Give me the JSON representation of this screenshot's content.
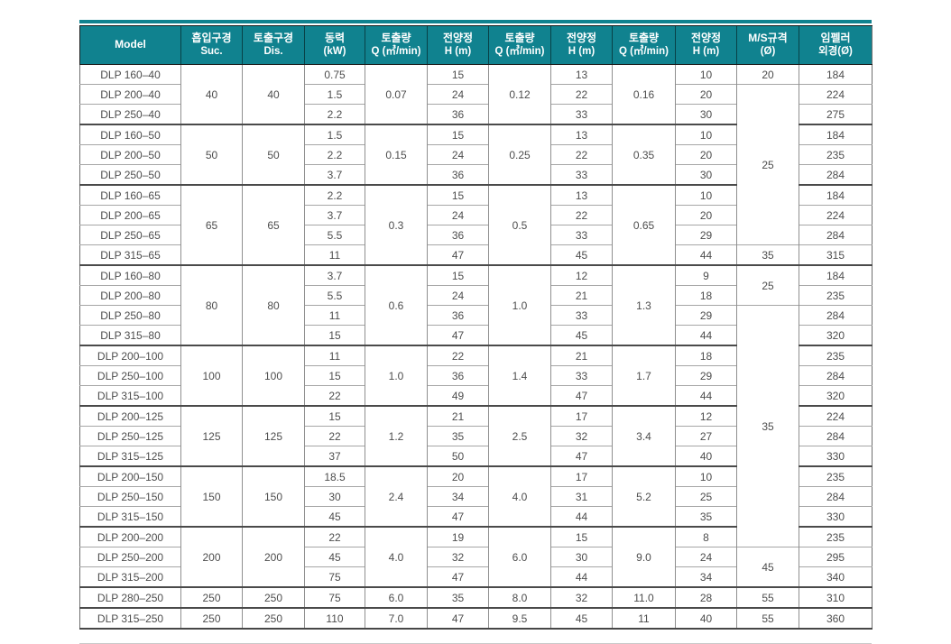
{
  "colors": {
    "header_bg": "#10828F",
    "header_text": "#ffffff",
    "accent_bar": "#10828F",
    "group_border": "#4a4a4a",
    "row_border": "#a6a6a6",
    "data_text": "#4d4d4d"
  },
  "table": {
    "header": {
      "model": "Model",
      "suction": [
        "흡입구경",
        "Suc."
      ],
      "discharge": [
        "토출구경",
        "Dis."
      ],
      "power": [
        "동력",
        "(kW)"
      ],
      "q1": [
        "토출량",
        "Q (㎥/min)"
      ],
      "h1": [
        "전양정",
        "H (m)"
      ],
      "q2": [
        "토출량",
        "Q (㎥/min)"
      ],
      "h2": [
        "전양정",
        "H (m)"
      ],
      "q3": [
        "토출량",
        "Q (㎥/min)"
      ],
      "h3": [
        "전양정",
        "H (m)"
      ],
      "ms": [
        "M/S규격",
        "(Ø)"
      ],
      "impeller": [
        "임펠러",
        "외경(Ø)"
      ]
    },
    "groups": [
      {
        "suc": "40",
        "dis": "40",
        "q": [
          "0.07",
          "0.12",
          "0.16"
        ],
        "rows": [
          {
            "model": "DLP 160–40",
            "kw": "0.75",
            "h": [
              "15",
              "13",
              "10"
            ],
            "imp": "184"
          },
          {
            "model": "DLP 200–40",
            "kw": "1.5",
            "h": [
              "24",
              "22",
              "20"
            ],
            "imp": "224"
          },
          {
            "model": "DLP 250–40",
            "kw": "2.2",
            "h": [
              "36",
              "33",
              "30"
            ],
            "imp": "275"
          }
        ]
      },
      {
        "suc": "50",
        "dis": "50",
        "q": [
          "0.15",
          "0.25",
          "0.35"
        ],
        "rows": [
          {
            "model": "DLP 160–50",
            "kw": "1.5",
            "h": [
              "15",
              "13",
              "10"
            ],
            "imp": "184"
          },
          {
            "model": "DLP 200–50",
            "kw": "2.2",
            "h": [
              "24",
              "22",
              "20"
            ],
            "imp": "235"
          },
          {
            "model": "DLP 250–50",
            "kw": "3.7",
            "h": [
              "36",
              "33",
              "30"
            ],
            "imp": "284"
          }
        ]
      },
      {
        "suc": "65",
        "dis": "65",
        "q": [
          "0.3",
          "0.5",
          "0.65"
        ],
        "rows": [
          {
            "model": "DLP 160–65",
            "kw": "2.2",
            "h": [
              "15",
              "13",
              "10"
            ],
            "imp": "184"
          },
          {
            "model": "DLP 200–65",
            "kw": "3.7",
            "h": [
              "24",
              "22",
              "20"
            ],
            "imp": "224"
          },
          {
            "model": "DLP 250–65",
            "kw": "5.5",
            "h": [
              "36",
              "33",
              "29"
            ],
            "imp": "284"
          },
          {
            "model": "DLP 315–65",
            "kw": "11",
            "h": [
              "47",
              "45",
              "44"
            ],
            "imp": "315"
          }
        ]
      },
      {
        "suc": "80",
        "dis": "80",
        "q": [
          "0.6",
          "1.0",
          "1.3"
        ],
        "rows": [
          {
            "model": "DLP 160–80",
            "kw": "3.7",
            "h": [
              "15",
              "12",
              "9"
            ],
            "imp": "184"
          },
          {
            "model": "DLP 200–80",
            "kw": "5.5",
            "h": [
              "24",
              "21",
              "18"
            ],
            "imp": "235"
          },
          {
            "model": "DLP 250–80",
            "kw": "11",
            "h": [
              "36",
              "33",
              "29"
            ],
            "imp": "284"
          },
          {
            "model": "DLP 315–80",
            "kw": "15",
            "h": [
              "47",
              "45",
              "44"
            ],
            "imp": "320"
          }
        ]
      },
      {
        "suc": "100",
        "dis": "100",
        "q": [
          "1.0",
          "1.4",
          "1.7"
        ],
        "rows": [
          {
            "model": "DLP 200–100",
            "kw": "11",
            "h": [
              "22",
              "21",
              "18"
            ],
            "imp": "235"
          },
          {
            "model": "DLP 250–100",
            "kw": "15",
            "h": [
              "36",
              "33",
              "29"
            ],
            "imp": "284"
          },
          {
            "model": "DLP 315–100",
            "kw": "22",
            "h": [
              "49",
              "47",
              "44"
            ],
            "imp": "320"
          }
        ]
      },
      {
        "suc": "125",
        "dis": "125",
        "q": [
          "1.2",
          "2.5",
          "3.4"
        ],
        "rows": [
          {
            "model": "DLP 200–125",
            "kw": "15",
            "h": [
              "21",
              "17",
              "12"
            ],
            "imp": "224"
          },
          {
            "model": "DLP 250–125",
            "kw": "22",
            "h": [
              "35",
              "32",
              "27"
            ],
            "imp": "284"
          },
          {
            "model": "DLP 315–125",
            "kw": "37",
            "h": [
              "50",
              "47",
              "40"
            ],
            "imp": "330"
          }
        ]
      },
      {
        "suc": "150",
        "dis": "150",
        "q": [
          "2.4",
          "4.0",
          "5.2"
        ],
        "rows": [
          {
            "model": "DLP 200–150",
            "kw": "18.5",
            "h": [
              "20",
              "17",
              "10"
            ],
            "imp": "235"
          },
          {
            "model": "DLP 250–150",
            "kw": "30",
            "h": [
              "34",
              "31",
              "25"
            ],
            "imp": "284"
          },
          {
            "model": "DLP 315–150",
            "kw": "45",
            "h": [
              "47",
              "44",
              "35"
            ],
            "imp": "330"
          }
        ]
      },
      {
        "suc": "200",
        "dis": "200",
        "q": [
          "4.0",
          "6.0",
          "9.0"
        ],
        "rows": [
          {
            "model": "DLP 200–200",
            "kw": "22",
            "h": [
              "19",
              "15",
              "8"
            ],
            "imp": "235"
          },
          {
            "model": "DLP 250–200",
            "kw": "45",
            "h": [
              "32",
              "30",
              "24"
            ],
            "imp": "295"
          },
          {
            "model": "DLP 315–200",
            "kw": "75",
            "h": [
              "47",
              "44",
              "34"
            ],
            "imp": "340"
          }
        ]
      },
      {
        "suc": "250",
        "dis": "250",
        "q": [
          "6.0",
          "8.0",
          "11.0"
        ],
        "rows": [
          {
            "model": "DLP 280–250",
            "kw": "75",
            "h": [
              "35",
              "32",
              "28"
            ],
            "imp": "310"
          }
        ]
      },
      {
        "suc": "250",
        "dis": "250",
        "q": [
          "7.0",
          "9.5",
          "11"
        ],
        "rows": [
          {
            "model": "DLP 315–250",
            "kw": "110",
            "h": [
              "47",
              "45",
              "40"
            ],
            "imp": "360"
          }
        ]
      }
    ],
    "ms_column": [
      {
        "value": "20",
        "span": 1
      },
      {
        "value": "25",
        "span": 8
      },
      {
        "value": "35",
        "span": 1
      },
      {
        "value": "25",
        "span": 2
      },
      {
        "value": "35",
        "span": 12
      },
      {
        "value": "45",
        "span": 2
      },
      {
        "value": "55",
        "span": 1
      },
      {
        "value": "55",
        "span": 1
      }
    ]
  }
}
